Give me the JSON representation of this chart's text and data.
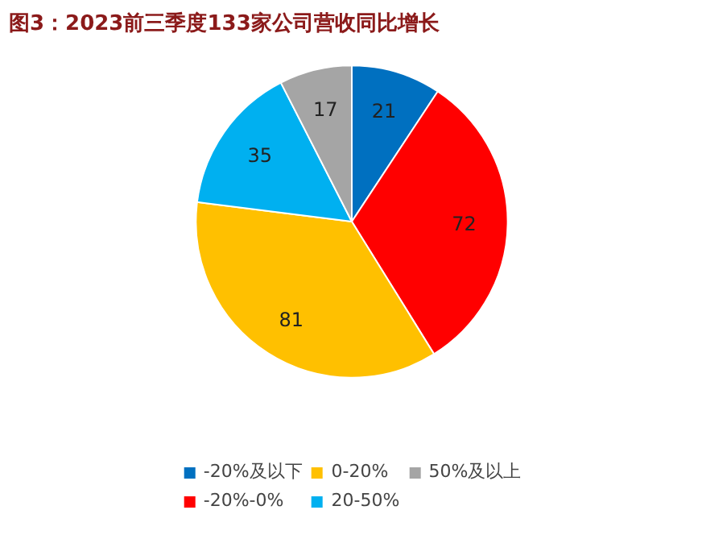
{
  "chart_data": {
    "type": "pie",
    "title": "图3：2023前三季度133家公司营收同比增长",
    "categories": [
      "-20%及以下",
      "-20%-0%",
      "0-20%",
      "20-50%",
      "50%及以上"
    ],
    "values": [
      21,
      72,
      81,
      35,
      17
    ],
    "colors": [
      "#0070c0",
      "#ff0000",
      "#ffc000",
      "#00b0f0",
      "#a5a5a5"
    ],
    "data_labels": true,
    "legend": "bottom"
  }
}
